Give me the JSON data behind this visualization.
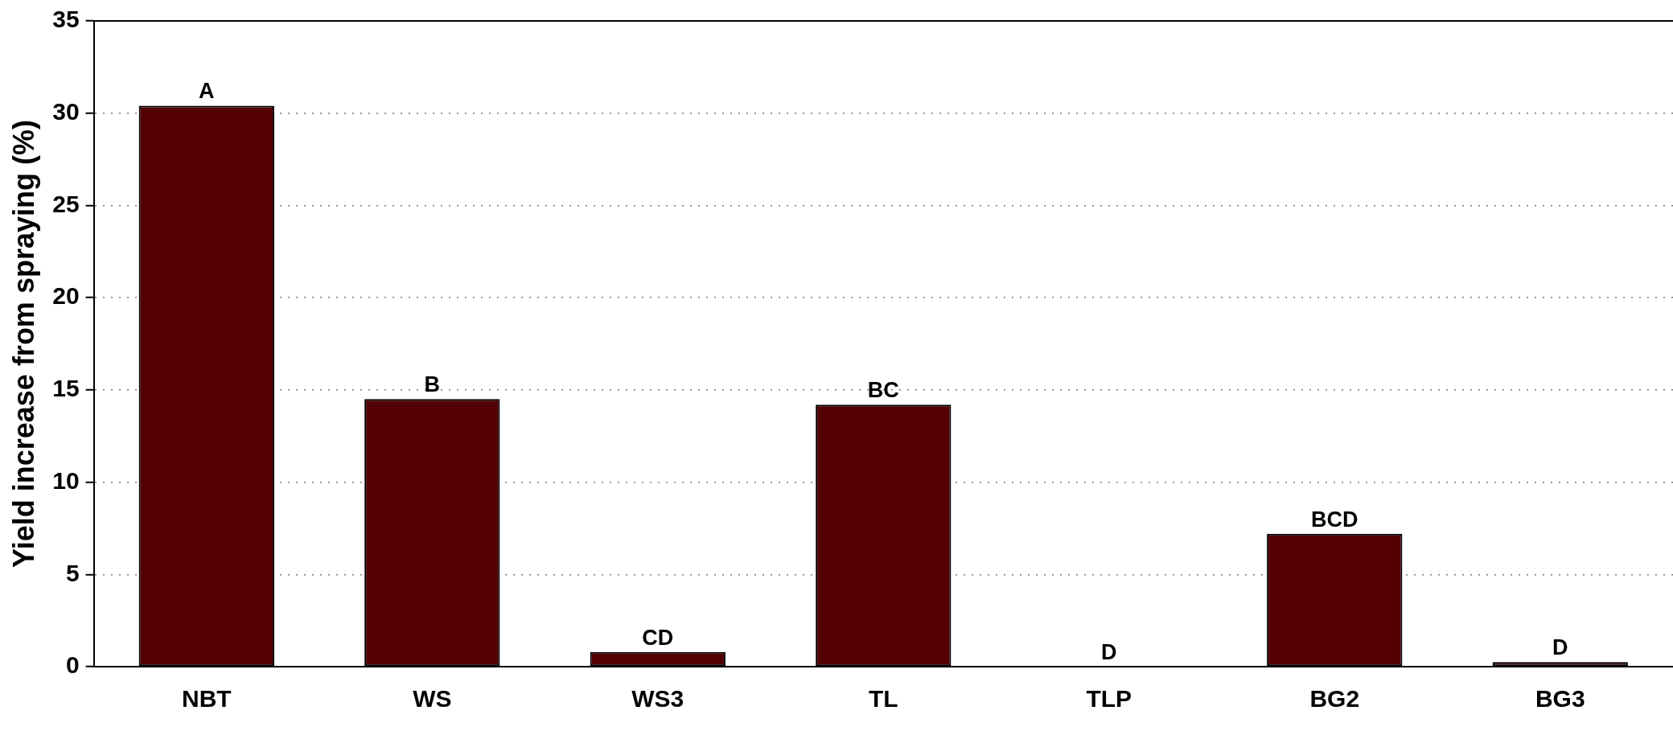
{
  "chart_data": {
    "type": "bar",
    "ylabel": "Yield increase from spraying (%)",
    "categories": [
      "NBT",
      "WS",
      "WS3",
      "TL",
      "TLP",
      "BG2",
      "BG3"
    ],
    "values": [
      30.4,
      14.5,
      0.8,
      14.2,
      0,
      7.2,
      0.25
    ],
    "color": "#520003",
    "ylim": [
      0,
      35
    ],
    "yticks": [
      0,
      5,
      10,
      15,
      20,
      25,
      30,
      35
    ],
    "grid": "y",
    "annotations": [
      {
        "text": "A",
        "x": "NBT",
        "y": 30.4
      },
      {
        "text": "B",
        "x": "WS",
        "y": 14.5
      },
      {
        "text": "CD",
        "x": "WS3",
        "y": 0.8
      },
      {
        "text": "BC",
        "x": "TL",
        "y": 14.2
      },
      {
        "text": "D",
        "x": "TLP",
        "y": 0
      },
      {
        "text": "BCD",
        "x": "BG2",
        "y": 7.2
      },
      {
        "text": "D",
        "x": "BG3",
        "y": 0.25
      }
    ]
  }
}
